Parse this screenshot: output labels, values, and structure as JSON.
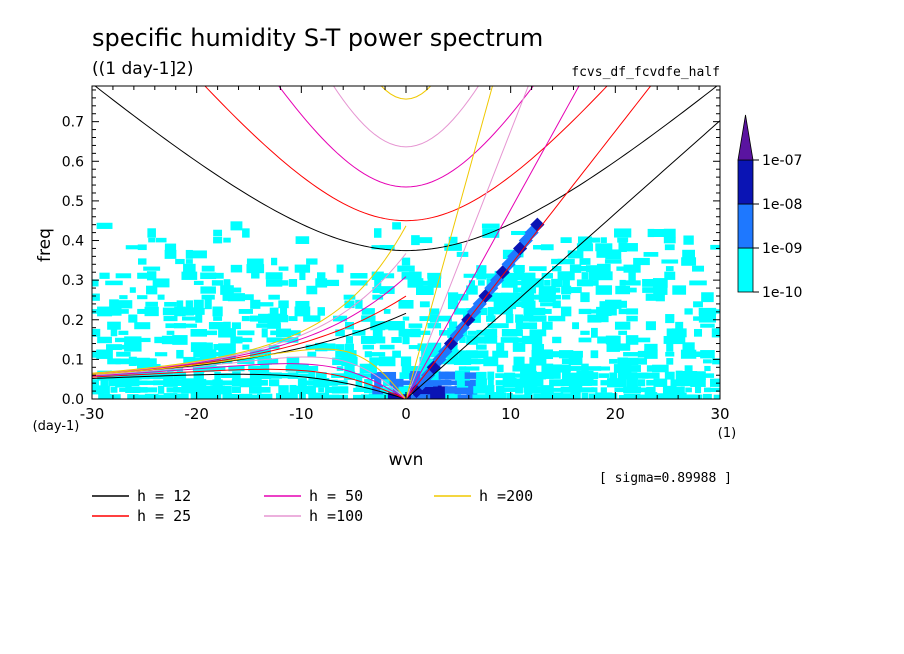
{
  "chart_data": {
    "type": "heatmap",
    "title": "specific humidity S-T power spectrum",
    "subtitle": "((1 day-1]2)",
    "tag": "fcvs_df_fcvdfe_half",
    "xlabel": "wvn",
    "ylabel": "freq",
    "x_unit": "(1)",
    "y_unit": "(day-1)",
    "sigma_note": "[ sigma=0.89988 ]",
    "xlim": [
      -30,
      30
    ],
    "ylim": [
      0,
      0.79
    ],
    "x_ticks": [
      "-30",
      "-20",
      "-10",
      "0",
      "10",
      "20",
      "30"
    ],
    "x_tick_values": [
      -30,
      -20,
      -10,
      0,
      10,
      20,
      30
    ],
    "y_ticks": [
      "0.0",
      "0.1",
      "0.2",
      "0.3",
      "0.4",
      "0.5",
      "0.6",
      "0.7"
    ],
    "y_tick_values": [
      0,
      0.1,
      0.2,
      0.3,
      0.4,
      0.5,
      0.6,
      0.7
    ],
    "colorbar": {
      "labels": [
        "1e-10",
        "1e-09",
        "1e-08",
        "1e-07"
      ],
      "colors": [
        "#00ffff",
        "#1e78ff",
        "#0a14b4",
        "#5a14a0"
      ],
      "extend": "max"
    },
    "dispersion_curves": [
      {
        "name": "h = 12",
        "h": 12,
        "color": "#000000"
      },
      {
        "name": "h = 25",
        "h": 25,
        "color": "#ff0000"
      },
      {
        "name": "h = 50",
        "h": 50,
        "color": "#e600b4"
      },
      {
        "name": "h =100",
        "h": 100,
        "color": "#e696d2"
      },
      {
        "name": "h =200",
        "h": 200,
        "color": "#f0c800"
      }
    ],
    "grid": false,
    "legend_position": "bottom"
  }
}
